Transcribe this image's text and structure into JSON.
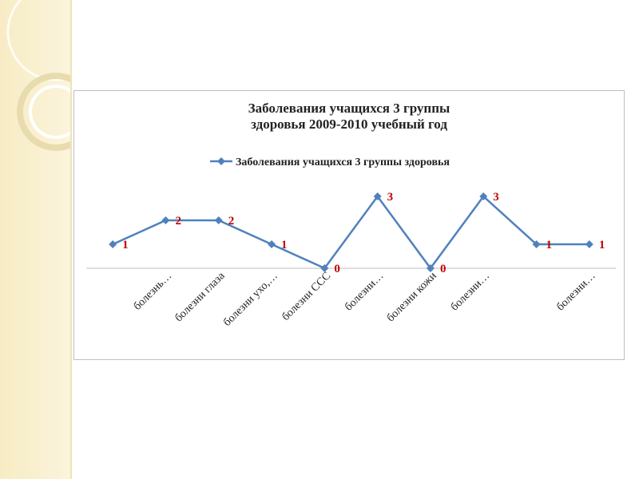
{
  "chart_data": {
    "type": "line",
    "title": "Заболевания учащихся 3 группы здоровья  2009-2010 учебный год",
    "categories": [
      null,
      "болезнь…",
      "болезни глаза",
      "болезни ухо,…",
      "болезни ССС",
      "болезни…",
      "болезни кожи",
      "болезни…",
      null,
      "болезни…"
    ],
    "series": [
      {
        "name": "Заболевания учащихся 3 группы здоровья",
        "color": "#4f81bd",
        "values": [
          1,
          2,
          2,
          1,
          0,
          3,
          0,
          3,
          1,
          1
        ]
      }
    ],
    "ylim": [
      0,
      3.5
    ],
    "legend": "top",
    "value_label_color": "#c00000"
  }
}
